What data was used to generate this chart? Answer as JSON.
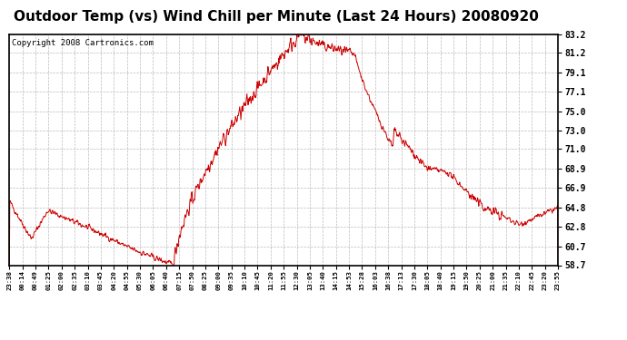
{
  "title": "Outdoor Temp (vs) Wind Chill per Minute (Last 24 Hours) 20080920",
  "copyright": "Copyright 2008 Cartronics.com",
  "line_color": "#cc0000",
  "background_color": "#ffffff",
  "grid_color": "#bbbbbb",
  "y_ticks": [
    58.7,
    60.7,
    62.8,
    64.8,
    66.9,
    68.9,
    71.0,
    73.0,
    75.0,
    77.1,
    79.1,
    81.2,
    83.2
  ],
  "x_labels": [
    "23:38",
    "00:14",
    "00:49",
    "01:25",
    "02:00",
    "02:35",
    "03:10",
    "03:45",
    "04:20",
    "04:55",
    "05:30",
    "06:05",
    "06:40",
    "07:15",
    "07:50",
    "08:25",
    "09:00",
    "09:35",
    "10:10",
    "10:45",
    "11:20",
    "11:55",
    "12:30",
    "13:05",
    "13:40",
    "14:15",
    "14:53",
    "15:28",
    "16:03",
    "16:38",
    "17:13",
    "17:30",
    "18:05",
    "18:40",
    "19:15",
    "19:50",
    "20:25",
    "21:00",
    "21:35",
    "22:10",
    "22:45",
    "23:20",
    "23:55"
  ],
  "ylim": [
    58.7,
    83.2
  ],
  "title_fontsize": 11,
  "copyright_fontsize": 6.5
}
